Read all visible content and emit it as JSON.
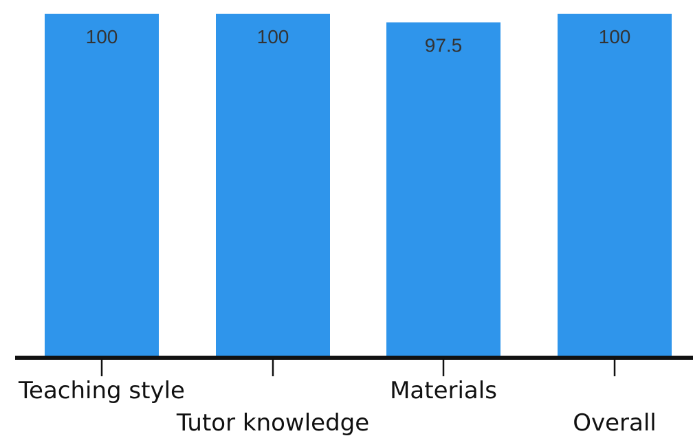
{
  "chart_data": {
    "type": "bar",
    "categories": [
      "Teaching style",
      "Tutor knowledge",
      "Materials",
      "Overall"
    ],
    "values": [
      100,
      100,
      97.5,
      100
    ],
    "value_labels": [
      "100",
      "100",
      "97.5",
      "100"
    ],
    "title": "",
    "xlabel": "",
    "ylabel": "",
    "ylim": [
      0,
      100
    ],
    "grid": false,
    "legend": "none",
    "bar_color": "#2f95eb"
  }
}
